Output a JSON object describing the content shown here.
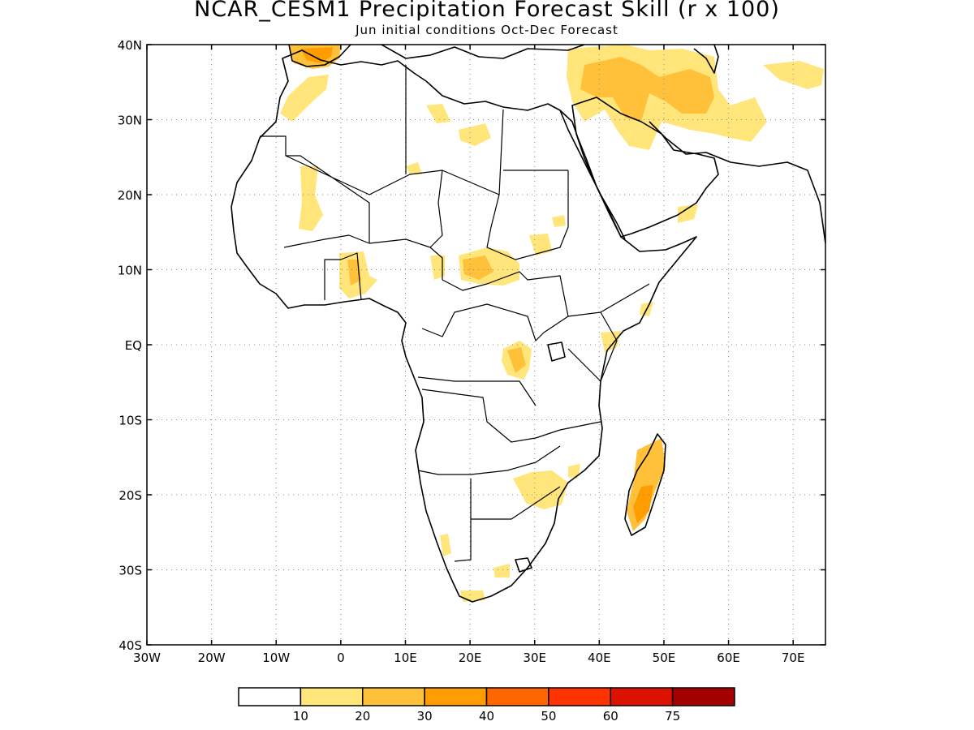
{
  "title": "NCAR_CESM1 Precipitation Forecast Skill (r x 100)",
  "subtitle": "Jun initial conditions  Oct-Dec Forecast",
  "axes": {
    "lat_labels": [
      "40N",
      "30N",
      "20N",
      "10N",
      "EQ",
      "10S",
      "20S",
      "30S",
      "40S"
    ],
    "lon_labels": [
      "30W",
      "20W",
      "10W",
      "0",
      "10E",
      "20E",
      "30E",
      "40E",
      "50E",
      "60E",
      "70E"
    ]
  },
  "colorbar": {
    "labels": [
      "10",
      "20",
      "30",
      "40",
      "50",
      "60",
      "75"
    ],
    "colors": [
      "#ffffff",
      "#ffe57a",
      "#ffc13a",
      "#ff9d00",
      "#ff6600",
      "#ff3300",
      "#dd1100",
      "#a40000"
    ]
  },
  "map": {
    "lat_range": [
      -40,
      40
    ],
    "lon_range": [
      -30,
      75
    ],
    "grid": true,
    "field": "precipitation forecast skill (r x 100)",
    "highlight_regions": [
      {
        "region": "Morocco / Iberia",
        "level": "30-40"
      },
      {
        "region": "Iraq / Iran",
        "level": "20-30"
      },
      {
        "region": "Arabian Peninsula north",
        "level": "10-30"
      },
      {
        "region": "Lake Victoria west / DR Congo",
        "level": "20-40"
      },
      {
        "region": "Central African Republic / South Sudan",
        "level": "10-30"
      },
      {
        "region": "Ghana / Togo / Benin",
        "level": "10-30"
      },
      {
        "region": "Madagascar",
        "level": "10-40"
      },
      {
        "region": "Zimbabwe / Mozambique",
        "level": "10-20"
      },
      {
        "region": "Western Sahara / Mauritania",
        "level": "10-20"
      },
      {
        "region": "South Africa south coast",
        "level": "10-20"
      }
    ]
  }
}
